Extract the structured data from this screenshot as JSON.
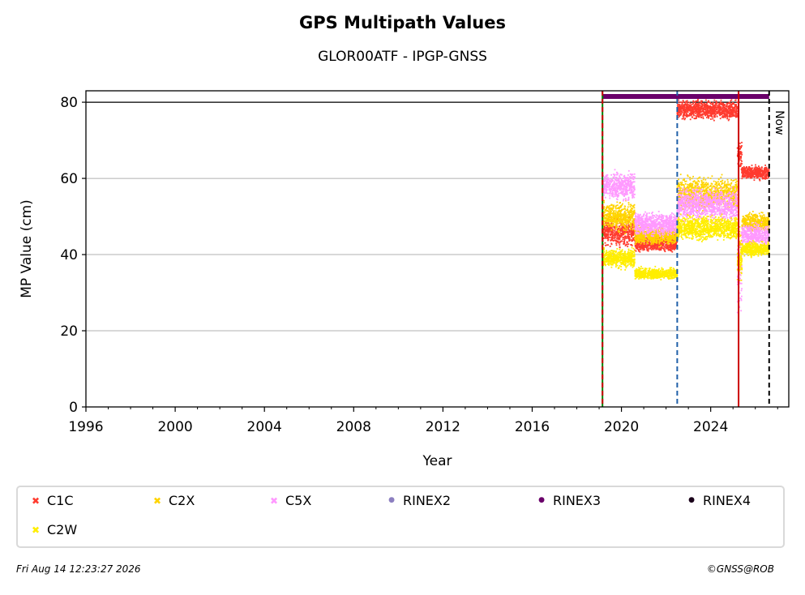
{
  "title": "GPS Multipath Values",
  "subtitle": "GLOR00ATF - IPGP-GNSS",
  "footer": {
    "date": "Fri Aug 14 12:23:27 2026",
    "copyright": "©GNSS@ROB"
  },
  "now_label": "Now",
  "legend": [
    {
      "label": "C1C",
      "marker": "x",
      "color": "#ff3b2f"
    },
    {
      "label": "C2X",
      "marker": "x",
      "color": "#ffd400"
    },
    {
      "label": "C5X",
      "marker": "x",
      "color": "#ff99ff"
    },
    {
      "label": "RINEX2",
      "marker": "dot",
      "color": "#8c7fc0"
    },
    {
      "label": "RINEX3",
      "marker": "dot",
      "color": "#6a006a"
    },
    {
      "label": "RINEX4",
      "marker": "dot",
      "color": "#1a001a"
    },
    {
      "label": "C2W",
      "marker": "x",
      "color": "#ffee00"
    }
  ],
  "chart_data": {
    "type": "scatter",
    "title": "GPS Multipath Values",
    "subtitle": "GLOR00ATF - IPGP-GNSS",
    "xlabel": "Year",
    "ylabel": "MP Value (cm)",
    "xlim": [
      1996,
      2027.5
    ],
    "ylim": [
      0,
      83
    ],
    "xticks": [
      1996,
      2000,
      2004,
      2008,
      2012,
      2016,
      2020,
      2024
    ],
    "yticks": [
      0,
      20,
      40,
      60,
      80
    ],
    "grid": "horizontal",
    "legend_position": "bottom",
    "reference_line_y": 80,
    "vertical_lines": [
      {
        "x": 2019.15,
        "color": "#008000",
        "style": "solid"
      },
      {
        "x": 2019.15,
        "color": "#cc0000",
        "style": "dashed"
      },
      {
        "x": 2022.5,
        "color": "#1f5fa8",
        "style": "dashed"
      },
      {
        "x": 2025.25,
        "color": "#cc0000",
        "style": "solid"
      },
      {
        "x": 2026.62,
        "color": "#000000",
        "style": "dashed"
      }
    ],
    "rinex_bar": {
      "series": "RINEX3",
      "start": 2019.15,
      "end": 2026.62,
      "y": 81.5
    },
    "series": [
      {
        "name": "C1C",
        "color": "#ff3b2f",
        "segments": [
          {
            "start": 2019.15,
            "end": 2020.6,
            "center": 46,
            "spread": 3
          },
          {
            "start": 2020.6,
            "end": 2022.5,
            "center": 43,
            "spread": 2
          },
          {
            "start": 2022.5,
            "end": 2025.2,
            "center": 78,
            "spread": 2
          },
          {
            "start": 2025.2,
            "end": 2025.4,
            "center": 66,
            "spread": 4
          },
          {
            "start": 2025.4,
            "end": 2026.62,
            "center": 61.5,
            "spread": 1.5
          }
        ]
      },
      {
        "name": "C2X",
        "color": "#ffd400",
        "segments": [
          {
            "start": 2019.15,
            "end": 2020.6,
            "center": 50,
            "spread": 3
          },
          {
            "start": 2020.6,
            "end": 2022.5,
            "center": 45,
            "spread": 2
          },
          {
            "start": 2022.5,
            "end": 2025.2,
            "center": 56,
            "spread": 3.5
          },
          {
            "start": 2025.2,
            "end": 2025.4,
            "center": 40,
            "spread": 6
          },
          {
            "start": 2025.4,
            "end": 2026.62,
            "center": 48.5,
            "spread": 2
          }
        ]
      },
      {
        "name": "C5X",
        "color": "#ff99ff",
        "segments": [
          {
            "start": 2019.15,
            "end": 2020.6,
            "center": 58,
            "spread": 3
          },
          {
            "start": 2020.6,
            "end": 2022.5,
            "center": 48,
            "spread": 2.5
          },
          {
            "start": 2022.5,
            "end": 2025.2,
            "center": 53,
            "spread": 3.5
          },
          {
            "start": 2025.2,
            "end": 2025.4,
            "center": 34,
            "spread": 9
          },
          {
            "start": 2025.4,
            "end": 2026.62,
            "center": 45,
            "spread": 2.5
          }
        ]
      },
      {
        "name": "C2W",
        "color": "#ffee00",
        "segments": [
          {
            "start": 2019.15,
            "end": 2020.6,
            "center": 39,
            "spread": 2
          },
          {
            "start": 2020.6,
            "end": 2022.5,
            "center": 35,
            "spread": 1.2
          },
          {
            "start": 2022.5,
            "end": 2025.2,
            "center": 47,
            "spread": 2.5
          },
          {
            "start": 2025.2,
            "end": 2025.4,
            "center": 38,
            "spread": 3
          },
          {
            "start": 2025.4,
            "end": 2026.62,
            "center": 41.5,
            "spread": 1.5
          }
        ]
      }
    ]
  }
}
